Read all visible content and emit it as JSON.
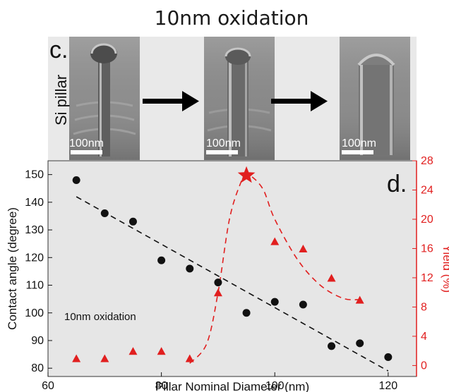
{
  "figure": {
    "title": "10nm oxidation",
    "panel_c_label": "c.",
    "panel_c_side_label": "Si pillar",
    "panel_d_label": "d.",
    "images": [
      {
        "scale_bar": "100nm",
        "icon": "sem-pillar-with-cap-image"
      },
      {
        "scale_bar": "100nm",
        "icon": "sem-oxidized-pillar-image"
      },
      {
        "scale_bar": "100nm",
        "icon": "sem-wide-pillar-image"
      }
    ],
    "arrow_icon": "right-arrow-icon",
    "colors": {
      "black_series": "#111111",
      "red_series": "#e11f1f",
      "plot_bg": "#e6e6e6"
    }
  },
  "chart_data": {
    "type": "scatter",
    "xlabel": "Pillar Nominal Diameter (nm)",
    "ylabel": "Contact angle (degree)",
    "y2label": "Yield (%)",
    "annotation": "10nm oxidation",
    "xlim": [
      60,
      125
    ],
    "ylim": [
      77,
      155
    ],
    "y2lim": [
      -1.5,
      28
    ],
    "xticks": [
      60,
      80,
      100,
      120
    ],
    "yticks": [
      80,
      90,
      100,
      110,
      120,
      130,
      140,
      150
    ],
    "y2ticks": [
      0,
      4,
      8,
      12,
      16,
      20,
      24,
      28
    ],
    "grid": false,
    "series": [
      {
        "axis": "left",
        "marker": "circle",
        "color": "#111111",
        "x": [
          65,
          70,
          75,
          80,
          85,
          90,
          95,
          100,
          105,
          110,
          115,
          120
        ],
        "y": [
          148,
          136,
          133,
          119,
          116,
          111,
          100,
          104,
          103,
          88,
          89,
          84
        ]
      },
      {
        "axis": "right",
        "marker": "triangle",
        "color": "#e11f1f",
        "x": [
          65,
          70,
          75,
          80,
          85,
          90,
          100,
          105,
          110,
          115
        ],
        "y": [
          1,
          1,
          2,
          2,
          1,
          10,
          17,
          16,
          12,
          9
        ]
      },
      {
        "axis": "right",
        "marker": "star",
        "color": "#e11f1f",
        "x": [
          95
        ],
        "y": [
          26
        ]
      }
    ],
    "fits": [
      {
        "axis": "left",
        "style": "dashed",
        "color": "#111111",
        "x": [
          65,
          120
        ],
        "y": [
          142,
          79
        ]
      },
      {
        "axis": "right",
        "style": "dashed",
        "color": "#e11f1f",
        "x": [
          85,
          88,
          90,
          92,
          94,
          95,
          96,
          98,
          100,
          104,
          108,
          112,
          115
        ],
        "y": [
          0.3,
          3,
          10,
          20,
          25,
          26,
          25.8,
          24,
          20,
          14.5,
          11,
          9.2,
          9
        ]
      }
    ]
  }
}
